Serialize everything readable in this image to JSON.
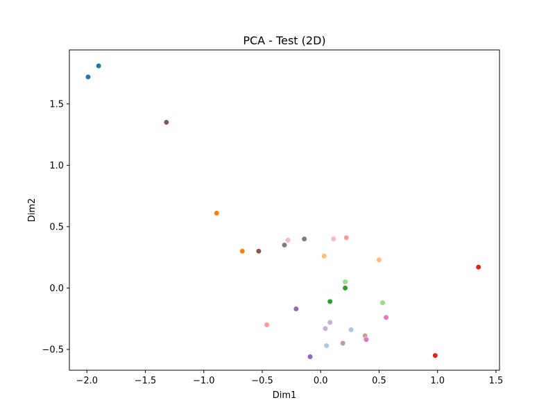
{
  "chart_data": {
    "type": "scatter",
    "title": "PCA - Test (2D)",
    "xlabel": "Dim1",
    "ylabel": "Dim2",
    "xlim": [
      -2.15,
      1.53
    ],
    "ylim": [
      -0.67,
      1.94
    ],
    "xticks": [
      -2.0,
      -1.5,
      -1.0,
      -0.5,
      0.0,
      0.5,
      1.0,
      1.5
    ],
    "xtick_labels": [
      "−2.0",
      "−1.5",
      "−1.0",
      "−0.5",
      "0.0",
      "0.5",
      "1.0",
      "1.5"
    ],
    "yticks": [
      -0.5,
      0.0,
      0.5,
      1.0,
      1.5
    ],
    "ytick_labels": [
      "−0.5",
      "0.0",
      "0.5",
      "1.0",
      "1.5"
    ],
    "grid": false,
    "legend": "none",
    "points": [
      {
        "x": -1.99,
        "y": 1.72,
        "color": "#1f77b4"
      },
      {
        "x": -1.9,
        "y": 1.81,
        "color": "#1f77b4"
      },
      {
        "x": -1.32,
        "y": 1.35,
        "color": "#8c564b"
      },
      {
        "x": -0.89,
        "y": 0.61,
        "color": "#ff7f0e"
      },
      {
        "x": -0.67,
        "y": 0.3,
        "color": "#ff7f0e"
      },
      {
        "x": -0.53,
        "y": 0.3,
        "color": "#8c564b"
      },
      {
        "x": -0.31,
        "y": 0.35,
        "color": "#7f7f7f"
      },
      {
        "x": -0.28,
        "y": 0.39,
        "color": "#f7b6d2"
      },
      {
        "x": -0.14,
        "y": 0.4,
        "color": "#7f7f7f"
      },
      {
        "x": 0.11,
        "y": 0.4,
        "color": "#f7b6d2"
      },
      {
        "x": 0.22,
        "y": 0.41,
        "color": "#ff9896"
      },
      {
        "x": 0.03,
        "y": 0.26,
        "color": "#ffbb78"
      },
      {
        "x": 0.5,
        "y": 0.23,
        "color": "#ffbb78"
      },
      {
        "x": 1.35,
        "y": 0.17,
        "color": "#d62728"
      },
      {
        "x": 0.21,
        "y": 0.05,
        "color": "#98df8a"
      },
      {
        "x": 0.21,
        "y": 0.0,
        "color": "#2ca02c"
      },
      {
        "x": 0.08,
        "y": -0.11,
        "color": "#2ca02c"
      },
      {
        "x": 0.53,
        "y": -0.12,
        "color": "#98df8a"
      },
      {
        "x": -0.21,
        "y": -0.17,
        "color": "#9467bd"
      },
      {
        "x": 0.56,
        "y": -0.24,
        "color": "#e377c2"
      },
      {
        "x": -0.46,
        "y": -0.3,
        "color": "#ff9896"
      },
      {
        "x": 0.08,
        "y": -0.28,
        "color": "#c5b0d5"
      },
      {
        "x": 0.04,
        "y": -0.33,
        "color": "#c5b0d5"
      },
      {
        "x": 0.26,
        "y": -0.34,
        "color": "#aec7e8"
      },
      {
        "x": 0.38,
        "y": -0.39,
        "color": "#c49c94"
      },
      {
        "x": 0.39,
        "y": -0.42,
        "color": "#e377c2"
      },
      {
        "x": 0.19,
        "y": -0.45,
        "color": "#c49c94"
      },
      {
        "x": 0.05,
        "y": -0.47,
        "color": "#aec7e8"
      },
      {
        "x": -0.09,
        "y": -0.56,
        "color": "#9467bd"
      },
      {
        "x": 0.98,
        "y": -0.55,
        "color": "#d62728"
      }
    ]
  }
}
